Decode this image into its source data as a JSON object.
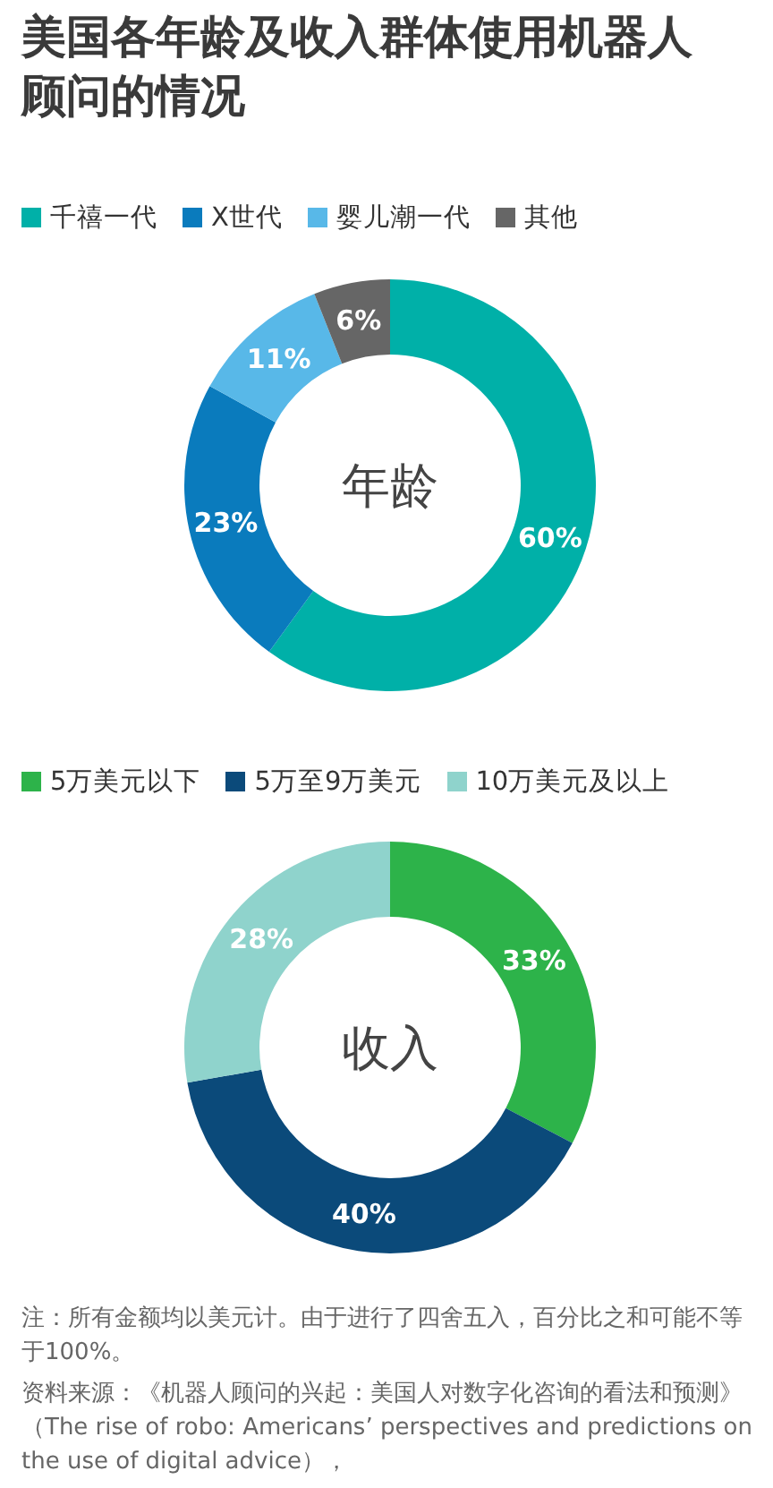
{
  "chart_data": [
    {
      "type": "donut",
      "title": "美国各年龄及收入群体使用机器人顾问的情况",
      "categories": [
        "千禧一代",
        "X世代",
        "婴儿潮一代",
        "其他"
      ],
      "values": [
        60,
        23,
        11,
        6
      ],
      "colors": [
        "#00b0a8",
        "#0a7bbd",
        "#58b8e8",
        "#666666"
      ],
      "value_labels": [
        "60%",
        "23%",
        "11%",
        "6%"
      ],
      "legend": "top left",
      "annotations": [
        "年龄"
      ]
    },
    {
      "type": "donut",
      "categories": [
        "5万美元以下",
        "5万至9万美元",
        "10万美元及以上"
      ],
      "values": [
        33,
        40,
        28
      ],
      "colors": [
        "#2db34a",
        "#0b4a7a",
        "#8fd3cc"
      ],
      "value_labels": [
        "33%",
        "40%",
        "28%"
      ],
      "legend": "top left",
      "annotations": [
        "收入",
        "注：所有金额均以美元计。由于进行了四舍五入，百分比之和可能不等于100%。",
        "资料来源：《机器人顾问的兴起：美国人对数字化咨询的看法和预测》（The rise of robo: Americans’ perspectives and predictions on the use of digital advice），"
      ]
    }
  ]
}
